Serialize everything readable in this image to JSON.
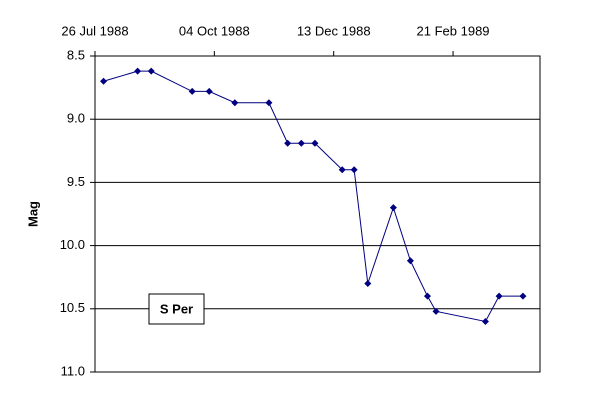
{
  "chart_data": {
    "type": "line",
    "annotation": "S Per",
    "y_label": "Mag",
    "x": [
      "1988-07-31",
      "1988-08-20",
      "1988-08-28",
      "1988-09-21",
      "1988-10-01",
      "1988-10-16",
      "1988-11-05",
      "1988-11-16",
      "1988-11-24",
      "1988-12-02",
      "1988-12-18",
      "1988-12-25",
      "1989-01-02",
      "1989-01-17",
      "1989-01-27",
      "1989-02-06",
      "1989-02-11",
      "1989-03-12",
      "1989-03-20",
      "1989-04-03"
    ],
    "series": [
      {
        "color": "#000080",
        "values": [
          8.7,
          8.62,
          8.62,
          8.78,
          8.78,
          8.87,
          8.87,
          9.19,
          9.19,
          9.19,
          9.4,
          9.4,
          10.3,
          9.7,
          10.12,
          10.4,
          10.52,
          10.6,
          10.4,
          10.4
        ]
      }
    ],
    "xlim": [
      "1988-07-26",
      "1989-04-13"
    ],
    "xticks": [
      {
        "value": "1988-07-26",
        "label": "26 Jul 1988"
      },
      {
        "value": "1988-10-04",
        "label": "04 Oct 1988"
      },
      {
        "value": "1988-12-13",
        "label": "13 Dec 1988"
      },
      {
        "value": "1989-02-21",
        "label": "21 Feb 1989"
      }
    ],
    "x_axis_position": "top",
    "ylim": [
      8.5,
      11.0
    ],
    "y_inverted": true,
    "yticks": [
      8.5,
      {
        "value": 9.0,
        "label": "9.0"
      },
      9.5,
      {
        "value": 10.0,
        "label": "10.0"
      },
      10.5,
      {
        "value": 11.0,
        "label": "11.0"
      }
    ],
    "grid": true
  }
}
